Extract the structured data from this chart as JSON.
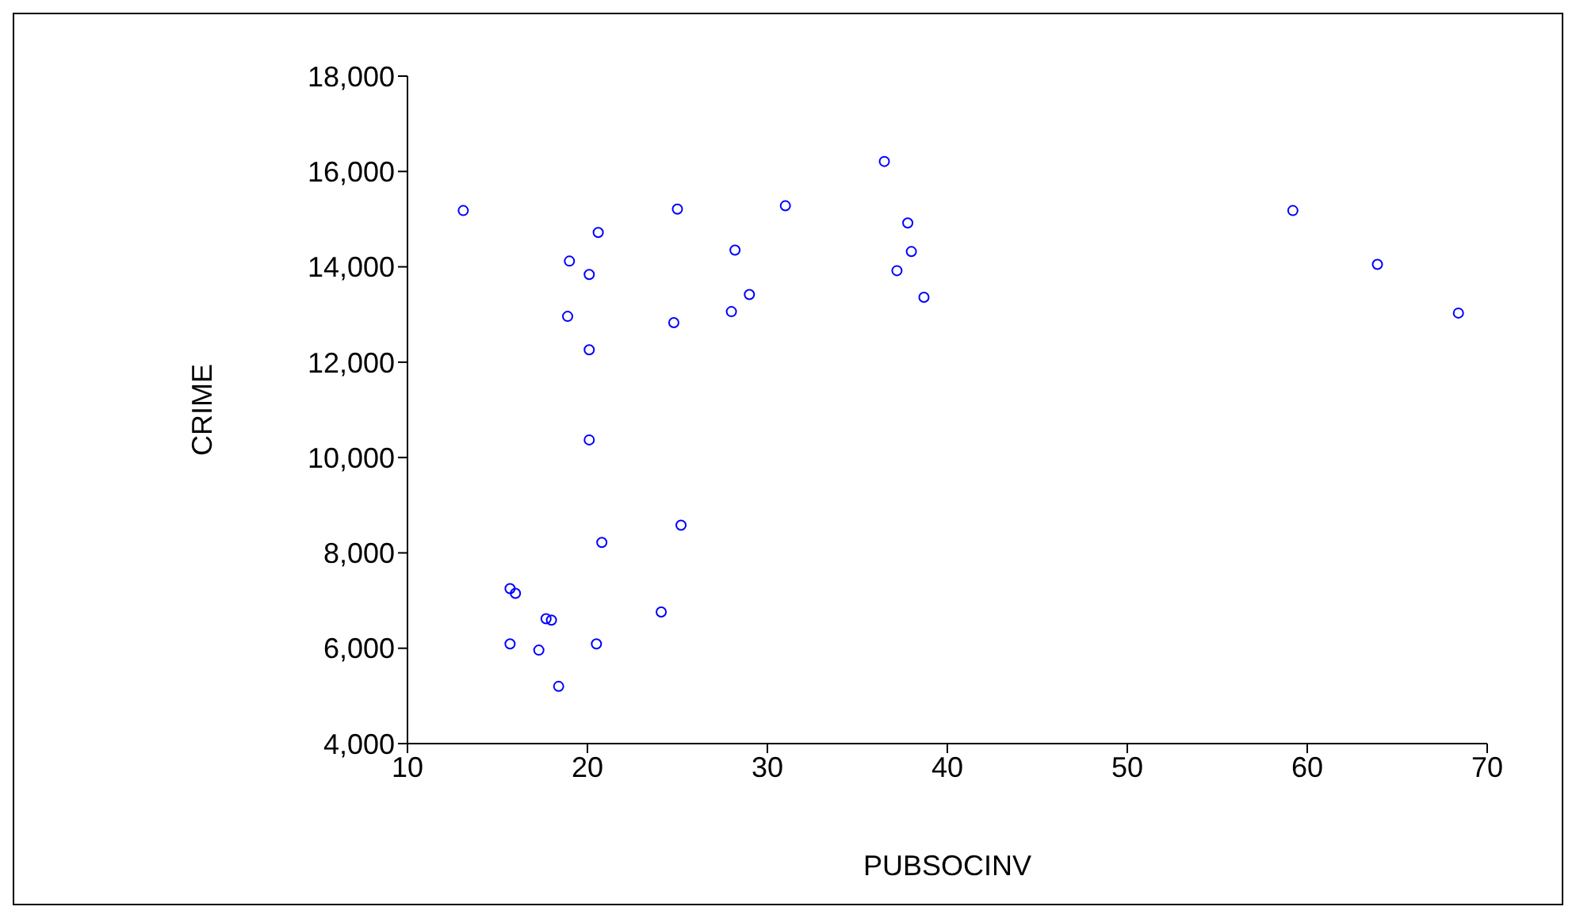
{
  "chart_data": {
    "type": "scatter",
    "xlabel": "PUBSOCINV",
    "ylabel": "CRIME",
    "marker": "circle",
    "grid": false,
    "legend": false,
    "xlim": [
      10,
      70
    ],
    "xticks": [
      10,
      20,
      30,
      40,
      50,
      60,
      70
    ],
    "ylim": [
      4000,
      18000
    ],
    "yticks": [
      {
        "value": 4000,
        "label": "4,000"
      },
      {
        "value": 6000,
        "label": "6,000"
      },
      {
        "value": 8000,
        "label": "8,000"
      },
      {
        "value": 10000,
        "label": "10,000"
      },
      {
        "value": 12000,
        "label": "12,000"
      },
      {
        "value": 14000,
        "label": "14,000"
      },
      {
        "value": 16000,
        "label": "16,000"
      },
      {
        "value": 18000,
        "label": "18,000"
      }
    ],
    "series": [
      {
        "color": "#0000ff",
        "x": [
          13.1,
          19.0,
          20.6,
          20.1,
          18.9,
          20.1,
          20.1,
          25.0,
          24.8,
          28.2,
          29.0,
          28.0,
          31.0,
          36.5,
          37.8,
          38.0,
          37.2,
          38.7,
          25.2,
          20.8,
          15.7,
          16.0,
          17.7,
          18.0,
          24.1,
          15.7,
          17.3,
          20.5,
          18.4,
          59.2,
          63.9,
          68.4
        ],
        "values": [
          15180,
          14120,
          14720,
          13840,
          12960,
          12260,
          10370,
          15210,
          12830,
          14350,
          13420,
          13060,
          15280,
          16210,
          14920,
          14320,
          13920,
          13360,
          8580,
          8220,
          7250,
          7150,
          6620,
          6590,
          6760,
          6090,
          5960,
          6090,
          5200,
          15180,
          14050,
          13030
        ]
      }
    ]
  }
}
